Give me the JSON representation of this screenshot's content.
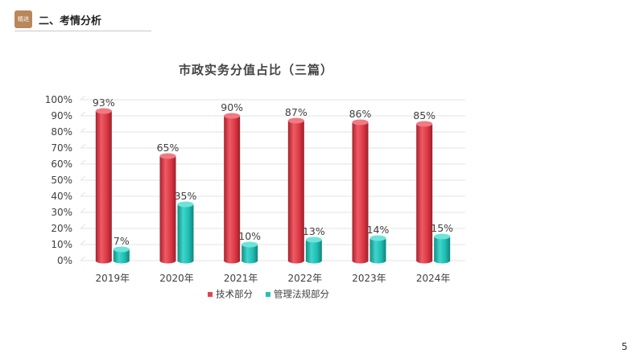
{
  "header": {
    "badge": "精进",
    "section_title": "二、考情分析"
  },
  "page_number": "5",
  "colors": {
    "badge": "#b9875a",
    "series_tech": "#e0434f",
    "series_law": "#23c1b6"
  },
  "chart_data": {
    "type": "bar",
    "title": "市政实务分值占比（三篇）",
    "categories": [
      "2019年",
      "2020年",
      "2021年",
      "2022年",
      "2023年",
      "2024年"
    ],
    "series": [
      {
        "name": "技术部分",
        "values": [
          93,
          65,
          90,
          87,
          86,
          85
        ],
        "labels": [
          "93%",
          "65%",
          "90%",
          "87%",
          "86%",
          "85%"
        ],
        "color": "#e0434f"
      },
      {
        "name": "管理法规部分",
        "values": [
          7,
          35,
          10,
          13,
          14,
          15
        ],
        "labels": [
          "7%",
          "35%",
          "10%",
          "13%",
          "14%",
          "15%"
        ],
        "color": "#23c1b6"
      }
    ],
    "ylim": [
      0,
      100
    ],
    "yticks": [
      0,
      10,
      20,
      30,
      40,
      50,
      60,
      70,
      80,
      90,
      100
    ],
    "ytick_labels": [
      "0%",
      "10%",
      "20%",
      "30%",
      "40%",
      "50%",
      "60%",
      "70%",
      "80%",
      "90%",
      "100%"
    ],
    "grid": true,
    "legend_position": "bottom"
  }
}
